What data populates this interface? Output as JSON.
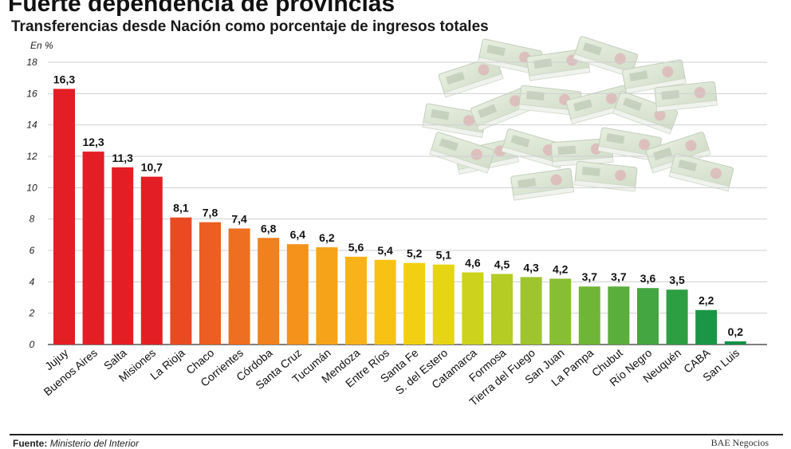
{
  "chart_data": {
    "type": "bar",
    "title": "Fuerte dependencia de provincias",
    "subtitle": "Transferencias desde Nación como porcentaje de ingresos totales",
    "ylabel": "En %",
    "ylim": [
      0,
      18
    ],
    "yticks": [
      "0",
      "2",
      "4",
      "6",
      "8",
      "10",
      "12",
      "14",
      "16",
      "18"
    ],
    "grid": true,
    "categories": [
      "Jujuy",
      "Buenos Aires",
      "Salta",
      "Misiones",
      "La Rioja",
      "Chaco",
      "Corrientes",
      "Córdoba",
      "Santa Cruz",
      "Tucumán",
      "Mendoza",
      "Entre Ríos",
      "Santa Fe",
      "S. del Estero",
      "Catamarca",
      "Formosa",
      "Tierra del Fuego",
      "San Juan",
      "La Pampa",
      "Chubut",
      "Río Negro",
      "Neuquén",
      "CABA",
      "San Luis"
    ],
    "values": [
      16.3,
      12.3,
      11.3,
      10.7,
      8.1,
      7.8,
      7.4,
      6.8,
      6.4,
      6.2,
      5.6,
      5.4,
      5.2,
      5.1,
      4.6,
      4.5,
      4.3,
      4.2,
      3.7,
      3.7,
      3.6,
      3.5,
      2.2,
      0.2
    ],
    "value_labels": [
      "16,3",
      "12,3",
      "11,3",
      "10,7",
      "8,1",
      "7,8",
      "7,4",
      "6,8",
      "6,4",
      "6,2",
      "5,6",
      "5,4",
      "5,2",
      "5,1",
      "4,6",
      "4,5",
      "4,3",
      "4,2",
      "3,7",
      "3,7",
      "3,6",
      "3,5",
      "2,2",
      "0,2"
    ],
    "colors": [
      "#e31e24",
      "#e31e24",
      "#e31e24",
      "#e31e24",
      "#ea4a22",
      "#ed5e22",
      "#ef6f22",
      "#f1801f",
      "#f4921c",
      "#f6a31a",
      "#f8b318",
      "#f8c214",
      "#f2cf12",
      "#e6d416",
      "#cdd21c",
      "#b5cc25",
      "#9ec52d",
      "#88be33",
      "#6fb638",
      "#5aae3c",
      "#44a640",
      "#2e9e43",
      "#1b9646",
      "#0f8f47"
    ]
  },
  "footer": {
    "source_label": "Fuente:",
    "source_text": "Ministerio del Interior",
    "credit": "BAE Negocios"
  }
}
